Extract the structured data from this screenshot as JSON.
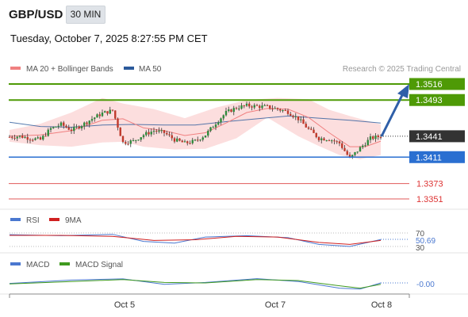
{
  "header": {
    "symbol": "GBP/USD",
    "timeframe": "30 MIN",
    "datetime": "Tuesday, October 7, 2025 8:27:55 PM CET"
  },
  "colors": {
    "resistance": "#4e9a06",
    "support": "#2a6fd1",
    "target_red": "#e05a5a",
    "ma20": "#f08080",
    "ma50": "#2b5a9b",
    "bollinger_fill": "#fbd3d3",
    "candle_up": "#2e8b3c",
    "candle_down": "#c0392b",
    "rsi": "#4a78d0",
    "rsi_ma": "#d02020",
    "macd": "#4a78d0",
    "macd_signal": "#3f9a1f",
    "arrow": "#2f5fa8",
    "current_label": "#333333"
  },
  "legend_main": [
    {
      "label": "MA 20 + Bollinger Bands",
      "color": "#f08080"
    },
    {
      "label": "MA 50",
      "color": "#2b5a9b"
    }
  ],
  "copyright": "Research © 2025 Trading Central",
  "price_levels": [
    {
      "value": 1.3516,
      "label": "1.3516",
      "kind": "resistance"
    },
    {
      "value": 1.3493,
      "label": "1.3493",
      "kind": "resistance"
    },
    {
      "value": 1.3441,
      "label": "1.3441",
      "kind": "current"
    },
    {
      "value": 1.3411,
      "label": "1.3411",
      "kind": "support"
    },
    {
      "value": 1.3373,
      "label": "1.3373",
      "kind": "target"
    },
    {
      "value": 1.3351,
      "label": "1.3351",
      "kind": "target"
    }
  ],
  "rsi_panel": {
    "legend": [
      {
        "label": "RSI",
        "color": "#4a78d0"
      },
      {
        "label": "9MA",
        "color": "#d02020"
      }
    ],
    "levels": [
      "70",
      "30"
    ],
    "value_label": "50.69"
  },
  "macd_panel": {
    "legend": [
      {
        "label": "MACD",
        "color": "#4a78d0"
      },
      {
        "label": "MACD Signal",
        "color": "#3f9a1f"
      }
    ],
    "value_label": "-0.00"
  },
  "x_axis": {
    "ticks": [
      "Oct 5",
      "Oct 7",
      "Oct 8"
    ]
  },
  "chart_data": {
    "type": "candlestick",
    "symbol": "GBP/USD",
    "timeframe": "30 MIN",
    "ylim": [
      1.3335,
      1.3535
    ],
    "close_path": [
      [
        0,
        1.344
      ],
      [
        4,
        1.3441
      ],
      [
        8,
        1.3438
      ],
      [
        12,
        1.3436
      ],
      [
        16,
        1.3452
      ],
      [
        20,
        1.3458
      ],
      [
        24,
        1.345
      ],
      [
        28,
        1.3457
      ],
      [
        32,
        1.3466
      ],
      [
        36,
        1.3474
      ],
      [
        40,
        1.3478
      ],
      [
        44,
        1.3432
      ],
      [
        48,
        1.3434
      ],
      [
        52,
        1.3443
      ],
      [
        56,
        1.3449
      ],
      [
        60,
        1.3446
      ],
      [
        64,
        1.3436
      ],
      [
        68,
        1.3431
      ],
      [
        72,
        1.3434
      ],
      [
        76,
        1.3443
      ],
      [
        80,
        1.346
      ],
      [
        84,
        1.3475
      ],
      [
        88,
        1.3482
      ],
      [
        92,
        1.3485
      ],
      [
        96,
        1.3484
      ],
      [
        100,
        1.3483
      ],
      [
        104,
        1.348
      ],
      [
        108,
        1.3476
      ],
      [
        112,
        1.3466
      ],
      [
        116,
        1.3451
      ],
      [
        120,
        1.3438
      ],
      [
        124,
        1.3437
      ],
      [
        128,
        1.3431
      ],
      [
        132,
        1.3409
      ],
      [
        136,
        1.3424
      ],
      [
        140,
        1.3438
      ],
      [
        144,
        1.3441
      ]
    ],
    "ma20_path": [
      [
        0,
        1.3441
      ],
      [
        12,
        1.3443
      ],
      [
        24,
        1.3449
      ],
      [
        36,
        1.3464
      ],
      [
        44,
        1.3466
      ],
      [
        52,
        1.3453
      ],
      [
        60,
        1.3449
      ],
      [
        68,
        1.3442
      ],
      [
        76,
        1.3446
      ],
      [
        84,
        1.346
      ],
      [
        92,
        1.3475
      ],
      [
        100,
        1.3481
      ],
      [
        108,
        1.348
      ],
      [
        116,
        1.3468
      ],
      [
        124,
        1.3446
      ],
      [
        132,
        1.3426
      ],
      [
        138,
        1.3426
      ],
      [
        144,
        1.3434
      ]
    ],
    "ma50_path": [
      [
        0,
        1.3461
      ],
      [
        12,
        1.3455
      ],
      [
        24,
        1.3454
      ],
      [
        36,
        1.3457
      ],
      [
        48,
        1.3458
      ],
      [
        60,
        1.3457
      ],
      [
        72,
        1.3457
      ],
      [
        84,
        1.3462
      ],
      [
        96,
        1.3466
      ],
      [
        108,
        1.347
      ],
      [
        120,
        1.3467
      ],
      [
        132,
        1.3464
      ],
      [
        144,
        1.346
      ]
    ],
    "bollinger_upper": [
      [
        0,
        1.345
      ],
      [
        12,
        1.3459
      ],
      [
        24,
        1.3475
      ],
      [
        36,
        1.3496
      ],
      [
        44,
        1.3488
      ],
      [
        56,
        1.348
      ],
      [
        68,
        1.3467
      ],
      [
        80,
        1.3482
      ],
      [
        92,
        1.3493
      ],
      [
        104,
        1.3496
      ],
      [
        116,
        1.3494
      ],
      [
        124,
        1.3479
      ],
      [
        132,
        1.347
      ],
      [
        144,
        1.3458
      ]
    ],
    "bollinger_lower": [
      [
        144,
        1.3414
      ],
      [
        136,
        1.3408
      ],
      [
        128,
        1.3414
      ],
      [
        120,
        1.3427
      ],
      [
        112,
        1.3441
      ],
      [
        100,
        1.3468
      ],
      [
        88,
        1.3438
      ],
      [
        76,
        1.3423
      ],
      [
        64,
        1.3422
      ],
      [
        52,
        1.3426
      ],
      [
        44,
        1.3433
      ],
      [
        36,
        1.3432
      ],
      [
        24,
        1.3426
      ],
      [
        12,
        1.3428
      ],
      [
        0,
        1.3433
      ]
    ],
    "rsi_ylim": [
      20,
      80
    ],
    "rsi_path": [
      [
        0,
        65
      ],
      [
        20,
        62
      ],
      [
        40,
        66
      ],
      [
        52,
        45
      ],
      [
        64,
        40
      ],
      [
        76,
        58
      ],
      [
        92,
        62
      ],
      [
        108,
        56
      ],
      [
        120,
        36
      ],
      [
        132,
        30
      ],
      [
        144,
        50.69
      ]
    ],
    "rsi_ma_path": [
      [
        0,
        63
      ],
      [
        20,
        63
      ],
      [
        40,
        60
      ],
      [
        56,
        48
      ],
      [
        72,
        50
      ],
      [
        88,
        60
      ],
      [
        104,
        58
      ],
      [
        120,
        42
      ],
      [
        132,
        36
      ],
      [
        144,
        48
      ]
    ],
    "macd_ylim": [
      -0.004,
      0.004
    ],
    "macd_path": [
      [
        0,
        -0.0002
      ],
      [
        24,
        0.0012
      ],
      [
        44,
        0.0017
      ],
      [
        60,
        -0.0006
      ],
      [
        76,
        0.0002
      ],
      [
        96,
        0.0018
      ],
      [
        112,
        0.0006
      ],
      [
        128,
        -0.0022
      ],
      [
        136,
        -0.0026
      ],
      [
        144,
        0.0
      ]
    ],
    "macd_signal_path": [
      [
        0,
        -0.0004
      ],
      [
        24,
        0.0006
      ],
      [
        44,
        0.0014
      ],
      [
        60,
        0.0002
      ],
      [
        76,
        0.0
      ],
      [
        96,
        0.0014
      ],
      [
        112,
        0.001
      ],
      [
        128,
        -0.0012
      ],
      [
        136,
        -0.0022
      ],
      [
        144,
        -0.0006
      ]
    ],
    "x_range": [
      0,
      150
    ]
  }
}
